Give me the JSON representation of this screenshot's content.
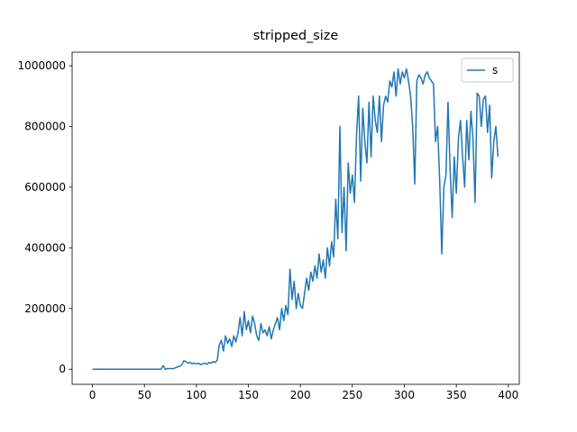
{
  "chart_data": {
    "type": "line",
    "title": "stripped_size",
    "x": [
      0,
      2,
      4,
      6,
      8,
      10,
      12,
      14,
      16,
      18,
      20,
      22,
      24,
      26,
      28,
      30,
      32,
      34,
      36,
      38,
      40,
      42,
      44,
      46,
      48,
      50,
      52,
      54,
      56,
      58,
      60,
      62,
      64,
      66,
      68,
      70,
      72,
      74,
      76,
      78,
      80,
      82,
      84,
      86,
      88,
      90,
      92,
      94,
      96,
      98,
      100,
      102,
      104,
      106,
      108,
      110,
      112,
      114,
      116,
      118,
      120,
      122,
      124,
      126,
      128,
      130,
      132,
      134,
      136,
      138,
      140,
      142,
      144,
      146,
      148,
      150,
      152,
      154,
      156,
      158,
      160,
      162,
      164,
      166,
      168,
      170,
      172,
      174,
      176,
      178,
      180,
      182,
      184,
      186,
      188,
      190,
      192,
      194,
      196,
      198,
      200,
      202,
      204,
      206,
      208,
      210,
      212,
      214,
      216,
      218,
      220,
      222,
      224,
      226,
      228,
      230,
      232,
      234,
      236,
      238,
      240,
      242,
      244,
      246,
      248,
      250,
      252,
      254,
      256,
      258,
      260,
      262,
      264,
      266,
      268,
      270,
      272,
      274,
      276,
      278,
      280,
      282,
      284,
      286,
      288,
      290,
      292,
      294,
      296,
      298,
      300,
      302,
      304,
      306,
      308,
      310,
      312,
      314,
      316,
      318,
      320,
      322,
      324,
      326,
      328,
      330,
      332,
      334,
      336,
      338,
      340,
      342,
      344,
      346,
      348,
      350,
      352,
      354,
      356,
      358,
      360,
      362,
      364,
      366,
      368,
      370,
      372,
      374,
      376,
      378,
      380,
      382,
      384,
      386,
      388,
      390
    ],
    "series": [
      {
        "name": "s",
        "color": "#1f77b4",
        "values": [
          0,
          0,
          0,
          0,
          0,
          0,
          0,
          0,
          0,
          0,
          0,
          0,
          0,
          0,
          0,
          0,
          0,
          0,
          0,
          0,
          0,
          0,
          0,
          0,
          0,
          0,
          0,
          0,
          0,
          0,
          0,
          0,
          0,
          0,
          12000,
          0,
          2000,
          2000,
          2000,
          2000,
          5000,
          8000,
          10000,
          15000,
          28000,
          25000,
          20000,
          22000,
          18000,
          20000,
          17000,
          20000,
          15000,
          18000,
          20000,
          16000,
          22000,
          20000,
          25000,
          22000,
          30000,
          80000,
          95000,
          60000,
          110000,
          85000,
          100000,
          75000,
          110000,
          90000,
          120000,
          170000,
          110000,
          190000,
          130000,
          160000,
          120000,
          175000,
          150000,
          110000,
          95000,
          150000,
          120000,
          130000,
          110000,
          140000,
          100000,
          130000,
          150000,
          170000,
          130000,
          200000,
          160000,
          210000,
          180000,
          330000,
          230000,
          290000,
          200000,
          250000,
          210000,
          200000,
          250000,
          300000,
          260000,
          320000,
          290000,
          340000,
          300000,
          380000,
          320000,
          360000,
          300000,
          400000,
          340000,
          420000,
          370000,
          560000,
          430000,
          800000,
          450000,
          600000,
          390000,
          680000,
          580000,
          640000,
          550000,
          770000,
          900000,
          620000,
          860000,
          750000,
          680000,
          880000,
          700000,
          900000,
          820000,
          780000,
          900000,
          750000,
          870000,
          900000,
          880000,
          950000,
          930000,
          980000,
          900000,
          990000,
          940000,
          980000,
          960000,
          990000,
          950000,
          900000,
          800000,
          610000,
          950000,
          970000,
          960000,
          940000,
          970000,
          980000,
          960000,
          950000,
          940000,
          750000,
          800000,
          620000,
          380000,
          600000,
          640000,
          880000,
          660000,
          500000,
          700000,
          580000,
          760000,
          820000,
          700000,
          600000,
          820000,
          690000,
          850000,
          760000,
          550000,
          910000,
          900000,
          800000,
          890000,
          900000,
          780000,
          870000,
          630000,
          750000,
          800000,
          700000
        ]
      }
    ],
    "xlim": [
      -19.55,
      410.55
    ],
    "xticks": [
      0,
      50,
      100,
      150,
      200,
      250,
      300,
      350,
      400
    ],
    "ylim": [
      -49750,
      1044750
    ],
    "yticks": [
      0,
      200000,
      400000,
      600000,
      800000,
      1000000
    ],
    "legend": "upper right"
  }
}
